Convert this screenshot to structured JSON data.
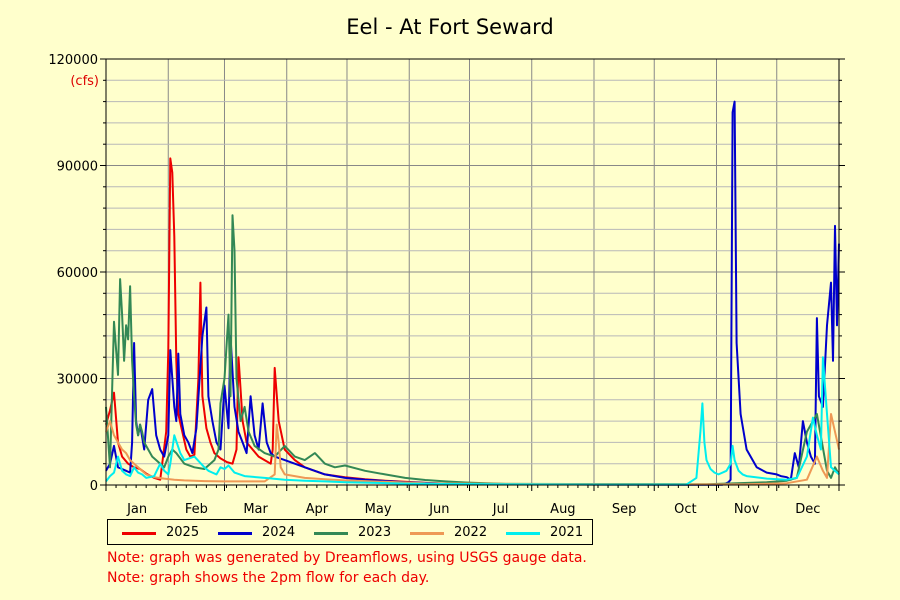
{
  "chart_data": {
    "type": "line",
    "title": "Eel - At Fort Seward",
    "y_unit": "(cfs)",
    "ylim": [
      0,
      120000
    ],
    "y_ticks": [
      0,
      30000,
      60000,
      90000,
      120000
    ],
    "months": [
      "Jan",
      "Feb",
      "Mar",
      "Apr",
      "May",
      "Jun",
      "Jul",
      "Aug",
      "Sep",
      "Oct",
      "Nov",
      "Dec"
    ],
    "xlim_day_of_year": [
      1,
      366
    ],
    "grid": true,
    "legend_placement": "bottom",
    "series": [
      {
        "name": "2025",
        "color": "#ee0000",
        "x": [
          1,
          3,
          5,
          7,
          9,
          12,
          15,
          18,
          21,
          25,
          28,
          31,
          32,
          33,
          34,
          35,
          36,
          37,
          39,
          41,
          43,
          45,
          47,
          48,
          49,
          51,
          53,
          55,
          58,
          61,
          64,
          66,
          67,
          69,
          71,
          74,
          77,
          80,
          83,
          84,
          85,
          87,
          90,
          95,
          100,
          110,
          120,
          130,
          140,
          150,
          160,
          170,
          180,
          183
        ],
        "y": [
          17000,
          21000,
          26000,
          12000,
          8000,
          6000,
          5000,
          4500,
          3200,
          2000,
          1500,
          15000,
          38000,
          92000,
          88000,
          70000,
          35000,
          20000,
          15000,
          10000,
          8000,
          8500,
          30000,
          57000,
          25000,
          16000,
          12000,
          9000,
          7500,
          6500,
          6000,
          10000,
          36000,
          18000,
          12000,
          10000,
          8000,
          7000,
          6000,
          10000,
          33000,
          18000,
          10000,
          7000,
          5000,
          3000,
          2200,
          1600,
          1200,
          900,
          600,
          400,
          250,
          200
        ]
      },
      {
        "name": "2024",
        "color": "#0000cc",
        "x": [
          1,
          3,
          5,
          7,
          9,
          11,
          13,
          14,
          15,
          16,
          17,
          18,
          20,
          22,
          24,
          26,
          28,
          30,
          32,
          33,
          35,
          36,
          37,
          38,
          40,
          42,
          44,
          46,
          49,
          51,
          52,
          54,
          56,
          58,
          60,
          62,
          63,
          65,
          67,
          69,
          71,
          73,
          75,
          77,
          79,
          81,
          83,
          85,
          90,
          95,
          100,
          110,
          120,
          130,
          150,
          170,
          200,
          250,
          290,
          300,
          308,
          310,
          311,
          312,
          313,
          314,
          315,
          317,
          320,
          325,
          330,
          335,
          337,
          340,
          342,
          344,
          346,
          348,
          350,
          352,
          354,
          355,
          356,
          358,
          360,
          362,
          363,
          364,
          365,
          366
        ],
        "y": [
          4000,
          6000,
          11000,
          5000,
          4500,
          4000,
          3500,
          12000,
          40000,
          18000,
          14000,
          17000,
          10000,
          24000,
          27000,
          14000,
          10000,
          8000,
          14000,
          38000,
          22000,
          18000,
          37000,
          20000,
          14000,
          12000,
          9000,
          16000,
          42000,
          50000,
          25000,
          18000,
          12000,
          10000,
          28000,
          16000,
          42000,
          22000,
          15000,
          12000,
          9000,
          25000,
          14000,
          10000,
          23000,
          12000,
          9000,
          8000,
          7000,
          6000,
          5000,
          3000,
          2000,
          1500,
          800,
          400,
          200,
          100,
          80,
          80,
          80,
          500,
          800,
          1500,
          105000,
          108000,
          40000,
          20000,
          10000,
          5000,
          3500,
          3000,
          2500,
          2200,
          1500,
          9000,
          5000,
          18000,
          12000,
          8000,
          6000,
          47000,
          25000,
          22000,
          45000,
          57000,
          35000,
          73000,
          45000,
          68000
        ]
      },
      {
        "name": "2023",
        "color": "#338855",
        "x": [
          1,
          3,
          5,
          7,
          8,
          9,
          10,
          11,
          12,
          13,
          14,
          15,
          16,
          17,
          18,
          19,
          20,
          22,
          24,
          26,
          28,
          30,
          32,
          34,
          36,
          40,
          45,
          50,
          55,
          57,
          58,
          60,
          62,
          63,
          64,
          65,
          66,
          68,
          70,
          72,
          75,
          80,
          85,
          90,
          95,
          100,
          105,
          110,
          115,
          120,
          130,
          140,
          150,
          160,
          170,
          180,
          190,
          200,
          300,
          330,
          340,
          345,
          350,
          355,
          360,
          362,
          364,
          366
        ],
        "y": [
          22000,
          5000,
          46000,
          31000,
          58000,
          48000,
          35000,
          45000,
          41000,
          56000,
          35000,
          25000,
          17000,
          14000,
          17000,
          15000,
          12000,
          10000,
          8000,
          7000,
          6000,
          5000,
          8000,
          10000,
          9000,
          6000,
          5000,
          4500,
          7000,
          10000,
          23000,
          30000,
          48000,
          25000,
          76000,
          66000,
          30000,
          18000,
          22000,
          15000,
          11000,
          9000,
          8000,
          11000,
          8000,
          7000,
          9000,
          6000,
          5000,
          5500,
          4000,
          3000,
          2000,
          1400,
          1000,
          700,
          500,
          300,
          200,
          800,
          1200,
          2000,
          15000,
          20000,
          4000,
          2000,
          5000,
          3000
        ]
      },
      {
        "name": "2022",
        "color": "#ee9955",
        "x": [
          1,
          3,
          5,
          7,
          9,
          11,
          13,
          15,
          17,
          19,
          21,
          25,
          30,
          35,
          40,
          50,
          60,
          70,
          80,
          85,
          86,
          87,
          88,
          90,
          95,
          100,
          110,
          120,
          130,
          140,
          150,
          160,
          200,
          280,
          320,
          340,
          350,
          355,
          358,
          360,
          362,
          364,
          366
        ],
        "y": [
          15000,
          18000,
          14000,
          12000,
          10000,
          9000,
          7000,
          6000,
          5000,
          4000,
          3000,
          2200,
          1800,
          1500,
          1300,
          1100,
          1000,
          1000,
          1000,
          3000,
          17000,
          12000,
          5000,
          3000,
          2500,
          2000,
          1600,
          1300,
          1100,
          900,
          700,
          500,
          300,
          150,
          200,
          500,
          1500,
          8000,
          4000,
          2000,
          20000,
          15000,
          10000
        ]
      },
      {
        "name": "2021",
        "color": "#00eeee",
        "x": [
          1,
          3,
          5,
          7,
          9,
          11,
          13,
          15,
          17,
          19,
          21,
          25,
          28,
          30,
          32,
          33,
          35,
          38,
          40,
          45,
          50,
          52,
          54,
          56,
          58,
          60,
          62,
          65,
          70,
          80,
          90,
          100,
          110,
          120,
          150,
          200,
          250,
          290,
          295,
          297,
          298,
          299,
          300,
          302,
          304,
          306,
          310,
          312,
          313,
          314,
          316,
          318,
          320,
          330,
          340,
          345,
          350,
          353,
          355,
          357,
          358,
          360,
          362,
          366
        ],
        "y": [
          1000,
          2500,
          3500,
          8000,
          4000,
          3000,
          2500,
          5000,
          3500,
          3000,
          2000,
          2500,
          6000,
          4000,
          3000,
          6000,
          14000,
          9000,
          7000,
          8000,
          5000,
          4000,
          3500,
          3000,
          5000,
          4500,
          5500,
          3500,
          2500,
          2000,
          1500,
          1200,
          1000,
          800,
          400,
          200,
          100,
          100,
          2000,
          15000,
          23000,
          12000,
          7000,
          4500,
          3500,
          3000,
          4000,
          6000,
          11000,
          7000,
          4000,
          3000,
          2500,
          1800,
          1500,
          2000,
          8000,
          19000,
          14000,
          10000,
          36000,
          20000,
          5000,
          3000
        ]
      }
    ],
    "notes": [
      "Note: graph was generated by Dreamflows, using USGS gauge data.",
      "Note: graph shows the 2pm flow for each day."
    ]
  }
}
